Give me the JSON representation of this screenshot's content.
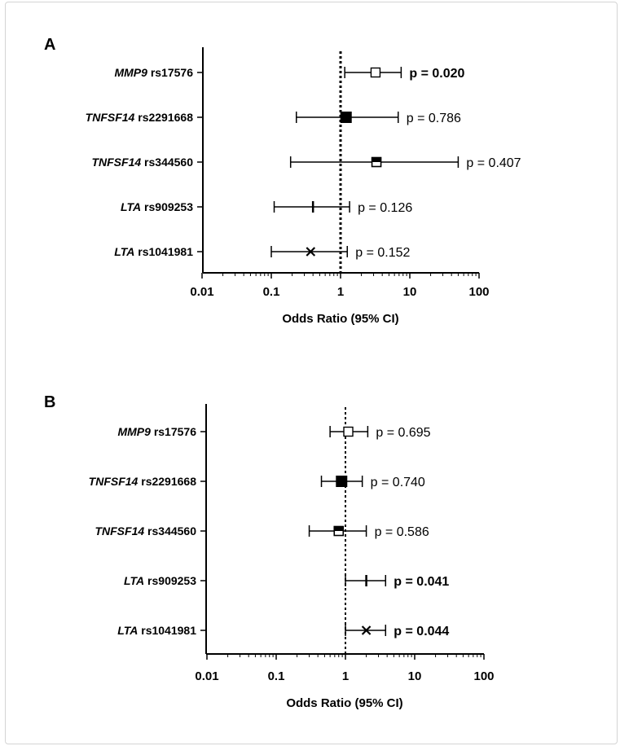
{
  "chart_data": [
    {
      "type": "forest",
      "panel_label": "A",
      "xlabel": "Odds Ratio (95% CI)",
      "xscale": "log",
      "xlim": [
        0.01,
        100
      ],
      "xticks": [
        "0.01",
        "0.1",
        "1",
        "10",
        "100"
      ],
      "reference_line": 1,
      "rows": [
        {
          "gene": "MMP9",
          "snp": "rs17576",
          "or": 3.2,
          "ci_low": 1.15,
          "ci_high": 7.5,
          "marker": "open-square",
          "p_label": "p = 0.020",
          "significant": true
        },
        {
          "gene": "TNFSF14",
          "snp": "rs2291668",
          "or": 1.2,
          "ci_low": 0.23,
          "ci_high": 6.8,
          "marker": "filled-square",
          "p_label": "p = 0.786",
          "significant": false
        },
        {
          "gene": "TNFSF14",
          "snp": "rs344560",
          "or": 3.3,
          "ci_low": 0.19,
          "ci_high": 50,
          "marker": "half-square",
          "p_label": "p = 0.407",
          "significant": false
        },
        {
          "gene": "LTA",
          "snp": "rs909253",
          "or": 0.4,
          "ci_low": 0.11,
          "ci_high": 1.35,
          "marker": "plus",
          "p_label": "p = 0.126",
          "significant": false
        },
        {
          "gene": "LTA",
          "snp": "rs1041981",
          "or": 0.37,
          "ci_low": 0.1,
          "ci_high": 1.25,
          "marker": "cross",
          "p_label": "p = 0.152",
          "significant": false
        }
      ]
    },
    {
      "type": "forest",
      "panel_label": "B",
      "xlabel": "Odds Ratio (95% CI)",
      "xscale": "log",
      "xlim": [
        0.01,
        100
      ],
      "xticks": [
        "0.01",
        "0.1",
        "1",
        "10",
        "100"
      ],
      "reference_line": 1,
      "rows": [
        {
          "gene": "MMP9",
          "snp": "rs17576",
          "or": 1.1,
          "ci_low": 0.6,
          "ci_high": 2.1,
          "marker": "open-square",
          "p_label": "p = 0.695",
          "significant": false
        },
        {
          "gene": "TNFSF14",
          "snp": "rs2291668",
          "or": 0.88,
          "ci_low": 0.45,
          "ci_high": 1.75,
          "marker": "filled-square",
          "p_label": "p = 0.740",
          "significant": false
        },
        {
          "gene": "TNFSF14",
          "snp": "rs344560",
          "or": 0.8,
          "ci_low": 0.3,
          "ci_high": 2.0,
          "marker": "half-square",
          "p_label": "p = 0.586",
          "significant": false
        },
        {
          "gene": "LTA",
          "snp": "rs909253",
          "or": 2.0,
          "ci_low": 1.0,
          "ci_high": 3.8,
          "marker": "plus",
          "p_label": "p = 0.041",
          "significant": true
        },
        {
          "gene": "LTA",
          "snp": "rs1041981",
          "or": 2.0,
          "ci_low": 1.0,
          "ci_high": 3.8,
          "marker": "cross",
          "p_label": "p = 0.044",
          "significant": true
        }
      ]
    }
  ]
}
